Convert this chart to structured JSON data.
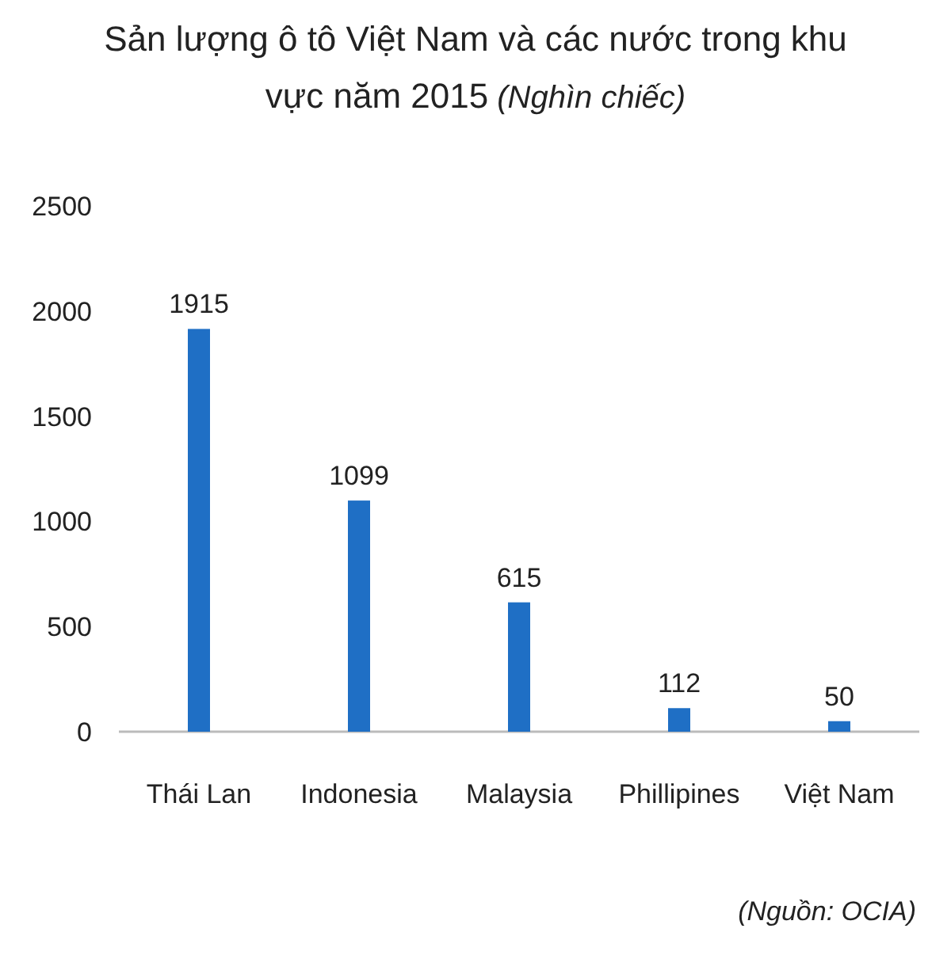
{
  "chart_data": {
    "type": "bar",
    "title": "Sản lượng ô tô Việt Nam và các nước trong khu vực năm 2015",
    "subtitle": "(Nghìn chiếc)",
    "categories": [
      "Thái Lan",
      "Indonesia",
      "Malaysia",
      "Phillipines",
      "Việt Nam"
    ],
    "values": [
      1915,
      1099,
      615,
      112,
      50
    ],
    "color": "#1f6fc5",
    "ylim": [
      0,
      2500
    ],
    "yticks": [
      0,
      500,
      1000,
      1500,
      2000,
      2500
    ],
    "grid": false,
    "data_labels": true,
    "annotations": [
      "(Nguồn: OCIA)"
    ]
  }
}
